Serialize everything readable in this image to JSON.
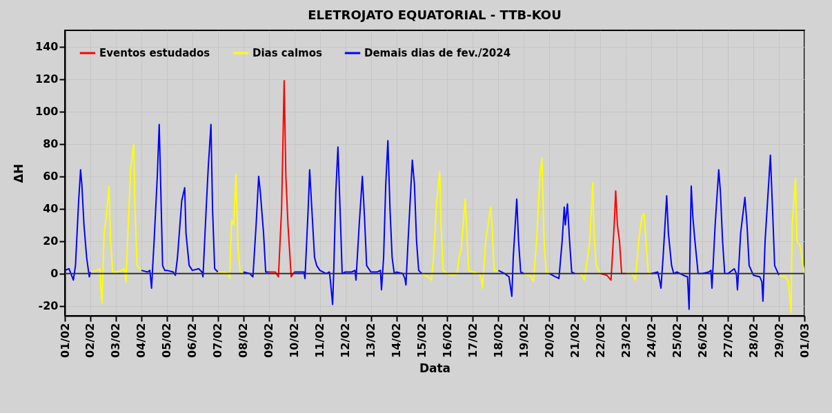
{
  "chart_data": {
    "type": "line",
    "title": "ELETROJATO EQUATORIAL - TTB-KOU",
    "xlabel": "Data",
    "ylabel": "ΔH",
    "xlim": [
      "2024-02-01",
      "2024-03-01"
    ],
    "xticks": [
      {
        "value": "2024-02-01",
        "label": "01/02"
      },
      {
        "value": "2024-02-02",
        "label": "02/02"
      },
      {
        "value": "2024-02-03",
        "label": "03/02"
      },
      {
        "value": "2024-02-04",
        "label": "04/02"
      },
      {
        "value": "2024-02-05",
        "label": "05/02"
      },
      {
        "value": "2024-02-06",
        "label": "06/02"
      },
      {
        "value": "2024-02-07",
        "label": "07/02"
      },
      {
        "value": "2024-02-08",
        "label": "08/02"
      },
      {
        "value": "2024-02-09",
        "label": "09/02"
      },
      {
        "value": "2024-02-10",
        "label": "10/02"
      },
      {
        "value": "2024-02-11",
        "label": "11/02"
      },
      {
        "value": "2024-02-12",
        "label": "12/02"
      },
      {
        "value": "2024-02-13",
        "label": "13/02"
      },
      {
        "value": "2024-02-14",
        "label": "14/02"
      },
      {
        "value": "2024-02-15",
        "label": "15/02"
      },
      {
        "value": "2024-02-16",
        "label": "16/02"
      },
      {
        "value": "2024-02-17",
        "label": "17/02"
      },
      {
        "value": "2024-02-18",
        "label": "18/02"
      },
      {
        "value": "2024-02-19",
        "label": "19/02"
      },
      {
        "value": "2024-02-20",
        "label": "20/02"
      },
      {
        "value": "2024-02-21",
        "label": "21/02"
      },
      {
        "value": "2024-02-22",
        "label": "22/02"
      },
      {
        "value": "2024-02-23",
        "label": "23/02"
      },
      {
        "value": "2024-02-24",
        "label": "24/02"
      },
      {
        "value": "2024-02-25",
        "label": "25/02"
      },
      {
        "value": "2024-02-26",
        "label": "26/02"
      },
      {
        "value": "2024-02-27",
        "label": "27/02"
      },
      {
        "value": "2024-02-28",
        "label": "28/02"
      },
      {
        "value": "2024-02-29",
        "label": "29/02"
      },
      {
        "value": "2024-03-01",
        "label": "01/03"
      }
    ],
    "ylim": [
      -26,
      150
    ],
    "yticks": [
      -20,
      0,
      20,
      40,
      60,
      80,
      100,
      120,
      140
    ],
    "grid": true,
    "legend": "top left",
    "ref_lines": [
      {
        "axis": "y",
        "value": 0,
        "color": "#333333"
      }
    ],
    "series": [
      {
        "name": "Eventos estudados",
        "color": "#ff0000",
        "x": [
          "2024-02-09T00:00",
          "2024-02-09T06:00",
          "2024-02-09T09:00",
          "2024-02-09T12:00",
          "2024-02-09T14:24",
          "2024-02-09T16:00",
          "2024-02-09T18:00",
          "2024-02-09T21:00",
          "2024-02-10T00:00",
          "2024-02-22T00:00",
          "2024-02-22T06:00",
          "2024-02-22T10:00",
          "2024-02-22T13:00",
          "2024-02-22T14:24",
          "2024-02-22T16:00",
          "2024-02-22T18:00",
          "2024-02-22T20:00",
          "2024-02-23T00:00"
        ],
        "values": [
          1,
          1,
          -2,
          40,
          119,
          60,
          30,
          -2,
          1,
          0,
          -1,
          -4,
          30,
          51,
          30,
          20,
          0,
          0
        ]
      },
      {
        "name": "Dias calmos",
        "color": "#ffff00",
        "x": [
          "2024-02-02T00:00",
          "2024-02-02T06:00",
          "2024-02-02T09:00",
          "2024-02-02T10:00",
          "2024-02-02T11:00",
          "2024-02-02T13:00",
          "2024-02-02T15:00",
          "2024-02-02T17:30",
          "2024-02-02T19:00",
          "2024-02-02T21:00",
          "2024-02-03T00:00",
          "2024-02-03T06:00",
          "2024-02-03T08:00",
          "2024-02-03T09:36",
          "2024-02-03T11:00",
          "2024-02-03T14:00",
          "2024-02-03T16:48",
          "2024-02-03T18:00",
          "2024-02-03T20:00",
          "2024-02-04T00:00",
          "2024-02-07T00:00",
          "2024-02-07T06:00",
          "2024-02-07T10:00",
          "2024-02-07T11:00",
          "2024-02-07T13:00",
          "2024-02-07T15:00",
          "2024-02-07T17:00",
          "2024-02-07T19:00",
          "2024-02-07T21:00",
          "2024-02-08T00:00",
          "2024-02-15T00:00",
          "2024-02-15T06:00",
          "2024-02-15T09:00",
          "2024-02-15T11:00",
          "2024-02-15T14:00",
          "2024-02-15T16:48",
          "2024-02-15T18:00",
          "2024-02-15T20:00",
          "2024-02-16T00:00",
          "2024-02-16T06:00",
          "2024-02-16T09:00",
          "2024-02-16T11:00",
          "2024-02-16T13:00",
          "2024-02-16T16:48",
          "2024-02-16T18:00",
          "2024-02-16T20:00",
          "2024-02-17T00:00",
          "2024-02-17T06:00",
          "2024-02-17T08:00",
          "2024-02-17T09:00",
          "2024-02-17T12:00",
          "2024-02-17T16:48",
          "2024-02-17T18:00",
          "2024-02-17T20:00",
          "2024-02-18T00:00",
          "2024-02-19T00:00",
          "2024-02-19T06:00",
          "2024-02-19T09:00",
          "2024-02-19T12:00",
          "2024-02-19T15:00",
          "2024-02-19T17:00",
          "2024-02-19T19:00",
          "2024-02-19T21:00",
          "2024-02-20T00:00",
          "2024-02-21T00:00",
          "2024-02-21T06:00",
          "2024-02-21T09:00",
          "2024-02-21T12:00",
          "2024-02-21T14:00",
          "2024-02-21T16:48",
          "2024-02-21T18:00",
          "2024-02-21T20:00",
          "2024-02-22T00:00",
          "2024-02-23T00:00",
          "2024-02-23T06:00",
          "2024-02-23T09:00",
          "2024-02-23T12:00",
          "2024-02-23T15:00",
          "2024-02-23T17:00",
          "2024-02-23T19:00",
          "2024-02-23T21:00",
          "2024-02-24T00:00",
          "2024-02-29T00:00",
          "2024-02-29T06:00",
          "2024-02-29T09:00",
          "2024-02-29T11:30",
          "2024-02-29T12:30",
          "2024-02-29T15:36",
          "2024-02-29T17:00",
          "2024-02-29T20:00",
          "2024-03-01T00:00"
        ],
        "values": [
          1,
          2,
          3,
          -10,
          -18,
          25,
          35,
          54,
          20,
          1,
          1,
          2,
          3,
          -5,
          20,
          65,
          80,
          40,
          5,
          2,
          1,
          1,
          0,
          -3,
          33,
          30,
          61,
          15,
          1,
          1,
          0,
          -2,
          -4,
          10,
          45,
          63,
          30,
          2,
          0,
          -1,
          0,
          10,
          15,
          46,
          30,
          2,
          1,
          0,
          -3,
          -9,
          20,
          41,
          30,
          2,
          2,
          0,
          -1,
          -5,
          20,
          60,
          71,
          20,
          1,
          0,
          0,
          0,
          -4,
          10,
          20,
          56,
          25,
          5,
          0,
          0,
          0,
          -4,
          20,
          35,
          37,
          20,
          0,
          0,
          -1,
          -2,
          -5,
          -24,
          30,
          59,
          20,
          17,
          0
        ]
      },
      {
        "name": "Demais dias de fev./2024",
        "color": "#0000ff",
        "x": [
          "2024-02-01T00:00",
          "2024-02-01T04:00",
          "2024-02-01T08:00",
          "2024-02-01T10:00",
          "2024-02-01T13:00",
          "2024-02-01T14:48",
          "2024-02-01T16:00",
          "2024-02-01T18:00",
          "2024-02-01T20:30",
          "2024-02-01T23:00",
          "2024-02-02T00:00",
          "2024-02-04T00:00",
          "2024-02-04T06:00",
          "2024-02-04T08:00",
          "2024-02-04T09:36",
          "2024-02-04T12:00",
          "2024-02-04T15:00",
          "2024-02-04T16:48",
          "2024-02-04T18:00",
          "2024-02-04T20:00",
          "2024-02-04T22:00",
          "2024-02-05T00:00",
          "2024-02-05T06:00",
          "2024-02-05T08:00",
          "2024-02-05T10:00",
          "2024-02-05T14:00",
          "2024-02-05T16:48",
          "2024-02-05T18:00",
          "2024-02-05T21:00",
          "2024-02-06T00:00",
          "2024-02-06T06:00",
          "2024-02-06T09:00",
          "2024-02-06T10:00",
          "2024-02-06T13:00",
          "2024-02-06T15:00",
          "2024-02-06T17:30",
          "2024-02-06T19:00",
          "2024-02-06T21:00",
          "2024-02-07T00:00",
          "2024-02-08T00:00",
          "2024-02-08T06:00",
          "2024-02-08T09:00",
          "2024-02-08T12:00",
          "2024-02-08T14:24",
          "2024-02-08T16:00",
          "2024-02-08T19:00",
          "2024-02-08T21:00",
          "2024-02-09T00:00",
          "2024-02-10T00:00",
          "2024-02-10T06:00",
          "2024-02-10T09:00",
          "2024-02-10T10:00",
          "2024-02-10T13:00",
          "2024-02-10T14:24",
          "2024-02-10T16:00",
          "2024-02-10T19:00",
          "2024-02-10T21:00",
          "2024-02-11T00:00",
          "2024-02-11T06:00",
          "2024-02-11T09:00",
          "2024-02-11T10:00",
          "2024-02-11T12:00",
          "2024-02-11T13:00",
          "2024-02-11T15:00",
          "2024-02-11T17:00",
          "2024-02-11T19:00",
          "2024-02-11T21:00",
          "2024-02-12T00:00",
          "2024-02-12T06:00",
          "2024-02-12T09:00",
          "2024-02-12T10:00",
          "2024-02-12T13:00",
          "2024-02-12T16:00",
          "2024-02-12T18:00",
          "2024-02-12T20:00",
          "2024-02-13T00:00",
          "2024-02-13T06:00",
          "2024-02-13T09:00",
          "2024-02-13T10:00",
          "2024-02-13T12:00",
          "2024-02-13T14:00",
          "2024-02-13T16:00",
          "2024-02-13T18:00",
          "2024-02-13T20:00",
          "2024-02-13T22:00",
          "2024-02-14T00:00",
          "2024-02-14T06:00",
          "2024-02-14T08:00",
          "2024-02-14T09:00",
          "2024-02-14T11:00",
          "2024-02-14T15:00",
          "2024-02-14T17:00",
          "2024-02-14T19:00",
          "2024-02-14T21:00",
          "2024-02-15T00:00",
          "2024-02-18T00:00",
          "2024-02-18T06:00",
          "2024-02-18T10:00",
          "2024-02-18T12:40",
          "2024-02-18T14:00",
          "2024-02-18T17:17",
          "2024-02-18T19:00",
          "2024-02-18T21:00",
          "2024-02-19T00:00",
          "2024-02-20T00:00",
          "2024-02-20T06:00",
          "2024-02-20T09:00",
          "2024-02-20T12:00",
          "2024-02-20T14:00",
          "2024-02-20T15:00",
          "2024-02-20T17:00",
          "2024-02-20T19:00",
          "2024-02-20T21:00",
          "2024-02-21T00:00",
          "2024-02-24T00:00",
          "2024-02-24T06:00",
          "2024-02-24T08:00",
          "2024-02-24T09:00",
          "2024-02-24T11:00",
          "2024-02-24T14:24",
          "2024-02-24T16:00",
          "2024-02-24T19:00",
          "2024-02-24T21:00",
          "2024-02-25T00:00",
          "2024-02-25T06:00",
          "2024-02-25T10:00",
          "2024-02-25T11:30",
          "2024-02-25T12:30",
          "2024-02-25T13:30",
          "2024-02-25T15:00",
          "2024-02-25T17:00",
          "2024-02-25T20:00",
          "2024-02-26T00:00",
          "2024-02-26T06:00",
          "2024-02-26T08:00",
          "2024-02-26T09:00",
          "2024-02-26T12:00",
          "2024-02-26T15:22",
          "2024-02-26T17:00",
          "2024-02-26T19:00",
          "2024-02-26T21:00",
          "2024-02-27T00:00",
          "2024-02-27T06:00",
          "2024-02-27T08:00",
          "2024-02-27T09:00",
          "2024-02-27T12:00",
          "2024-02-27T16:00",
          "2024-02-27T18:00",
          "2024-02-27T20:00",
          "2024-02-28T00:00",
          "2024-02-28T06:00",
          "2024-02-28T08:00",
          "2024-02-28T09:00",
          "2024-02-28T11:00",
          "2024-02-28T16:00",
          "2024-02-28T18:00",
          "2024-02-28T20:00",
          "2024-02-29T00:00"
        ],
        "values": [
          2,
          3,
          -4,
          5,
          45,
          64,
          55,
          30,
          10,
          -2,
          1,
          2,
          1,
          2,
          -9,
          20,
          60,
          92,
          60,
          5,
          2,
          2,
          1,
          -1,
          10,
          45,
          53,
          25,
          5,
          2,
          3,
          1,
          -2,
          40,
          66,
          92,
          40,
          3,
          1,
          1,
          0,
          -2,
          30,
          60,
          50,
          25,
          1,
          1,
          1,
          1,
          1,
          -3,
          40,
          64,
          45,
          10,
          5,
          2,
          0,
          1,
          -5,
          -19,
          0,
          50,
          78,
          40,
          0,
          1,
          1,
          2,
          -4,
          30,
          60,
          35,
          5,
          1,
          1,
          2,
          -10,
          10,
          55,
          82,
          40,
          10,
          0,
          1,
          0,
          -3,
          -7,
          20,
          70,
          55,
          20,
          2,
          0,
          2,
          0,
          -2,
          -14,
          10,
          46,
          20,
          1,
          0,
          0,
          -2,
          -3,
          20,
          41,
          30,
          43,
          20,
          1,
          0,
          0,
          1,
          -5,
          -9,
          10,
          48,
          25,
          5,
          0,
          1,
          -1,
          -2,
          -22,
          20,
          54,
          35,
          20,
          0,
          0,
          1,
          2,
          -9,
          30,
          64,
          50,
          20,
          0,
          0,
          3,
          0,
          -10,
          25,
          47,
          30,
          5,
          -1,
          -2,
          -5,
          -17,
          20,
          73,
          40,
          5,
          -1
        ]
      }
    ]
  }
}
